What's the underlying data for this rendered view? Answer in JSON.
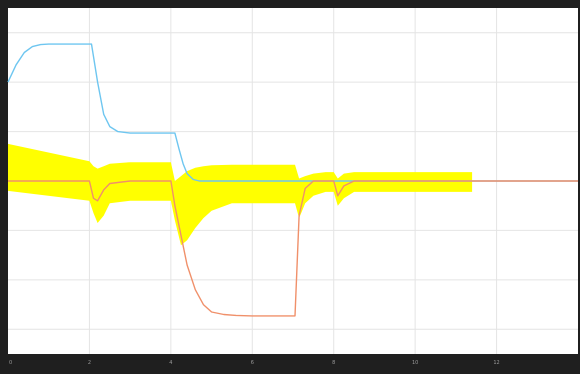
{
  "chart_data": {
    "type": "line",
    "title": "",
    "xlabel": "",
    "ylabel": "",
    "grid": true,
    "legend": "none",
    "xlim": [
      0,
      14
    ],
    "ylim": [
      -3.5,
      3.5
    ],
    "x_ticks": [
      0,
      2,
      4,
      6,
      8,
      10,
      12
    ],
    "x_tick_labels": [
      "0",
      "2",
      "4",
      "6",
      "8",
      "10",
      "12"
    ],
    "y_ticks": [
      -3,
      -2,
      -1,
      0,
      1,
      2,
      3
    ],
    "colors": {
      "background": "#ffffff",
      "frame": "#1f1f1f",
      "grid": "#e4e4e4",
      "band": "#ffff00",
      "blue_series": "#6ec6f0",
      "orange_series": "#f0906a"
    },
    "series": [
      {
        "color": "#6ec6f0",
        "x": [
          0,
          0.2,
          0.4,
          0.6,
          0.8,
          1.0,
          1.4,
          2.05,
          2.2,
          2.35,
          2.5,
          2.7,
          3.0,
          4.1,
          4.2,
          4.3,
          4.4,
          4.55,
          4.7,
          5.0,
          6.0,
          7.0,
          8.0,
          10.0,
          12.0,
          14.0
        ],
        "y": [
          2.0,
          2.35,
          2.6,
          2.72,
          2.76,
          2.77,
          2.77,
          2.77,
          2.0,
          1.35,
          1.1,
          1.0,
          0.97,
          0.97,
          0.65,
          0.35,
          0.15,
          0.03,
          0.0,
          0.0,
          0.0,
          0.0,
          0.0,
          0.0,
          0.0,
          0.0
        ]
      },
      {
        "color": "#f0906a",
        "x": [
          0,
          2.0,
          2.1,
          2.2,
          2.35,
          2.5,
          3.0,
          4.0,
          4.1,
          4.25,
          4.4,
          4.6,
          4.8,
          5.0,
          5.3,
          5.6,
          6.0,
          7.05,
          7.15,
          7.3,
          7.5,
          7.8,
          8.0,
          8.1,
          8.25,
          8.5,
          10.0,
          12.0,
          14.0
        ],
        "y": [
          0.0,
          0.0,
          -0.35,
          -0.4,
          -0.18,
          -0.05,
          0.0,
          0.0,
          -0.5,
          -1.1,
          -1.7,
          -2.2,
          -2.5,
          -2.65,
          -2.7,
          -2.72,
          -2.73,
          -2.73,
          -0.7,
          -0.15,
          0.0,
          0.0,
          0.0,
          -0.3,
          -0.1,
          0.0,
          0.0,
          0.0,
          0.0
        ]
      }
    ],
    "bands": [
      {
        "color": "#ffff00",
        "x": [
          0,
          2.0,
          2.1,
          2.2,
          2.35,
          2.5,
          3.0,
          4.0,
          4.1,
          4.25,
          4.4,
          4.6,
          4.8,
          5.0,
          5.5,
          6.0,
          7.05,
          7.15,
          7.3,
          7.5,
          7.8,
          8.0,
          8.1,
          8.25,
          8.5,
          9.0,
          10.0,
          11.4
        ],
        "upper": [
          0.75,
          0.4,
          0.3,
          0.25,
          0.3,
          0.35,
          0.38,
          0.38,
          0.0,
          0.1,
          0.2,
          0.27,
          0.3,
          0.32,
          0.33,
          0.33,
          0.33,
          0.05,
          0.1,
          0.15,
          0.18,
          0.18,
          0.05,
          0.15,
          0.18,
          0.18,
          0.18,
          0.18
        ],
        "lower": [
          -0.2,
          -0.4,
          -0.65,
          -0.85,
          -0.7,
          -0.45,
          -0.4,
          -0.4,
          -0.8,
          -1.3,
          -1.2,
          -0.95,
          -0.75,
          -0.6,
          -0.45,
          -0.45,
          -0.45,
          -0.75,
          -0.45,
          -0.3,
          -0.22,
          -0.22,
          -0.5,
          -0.35,
          -0.22,
          -0.22,
          -0.22,
          -0.22
        ]
      }
    ]
  }
}
